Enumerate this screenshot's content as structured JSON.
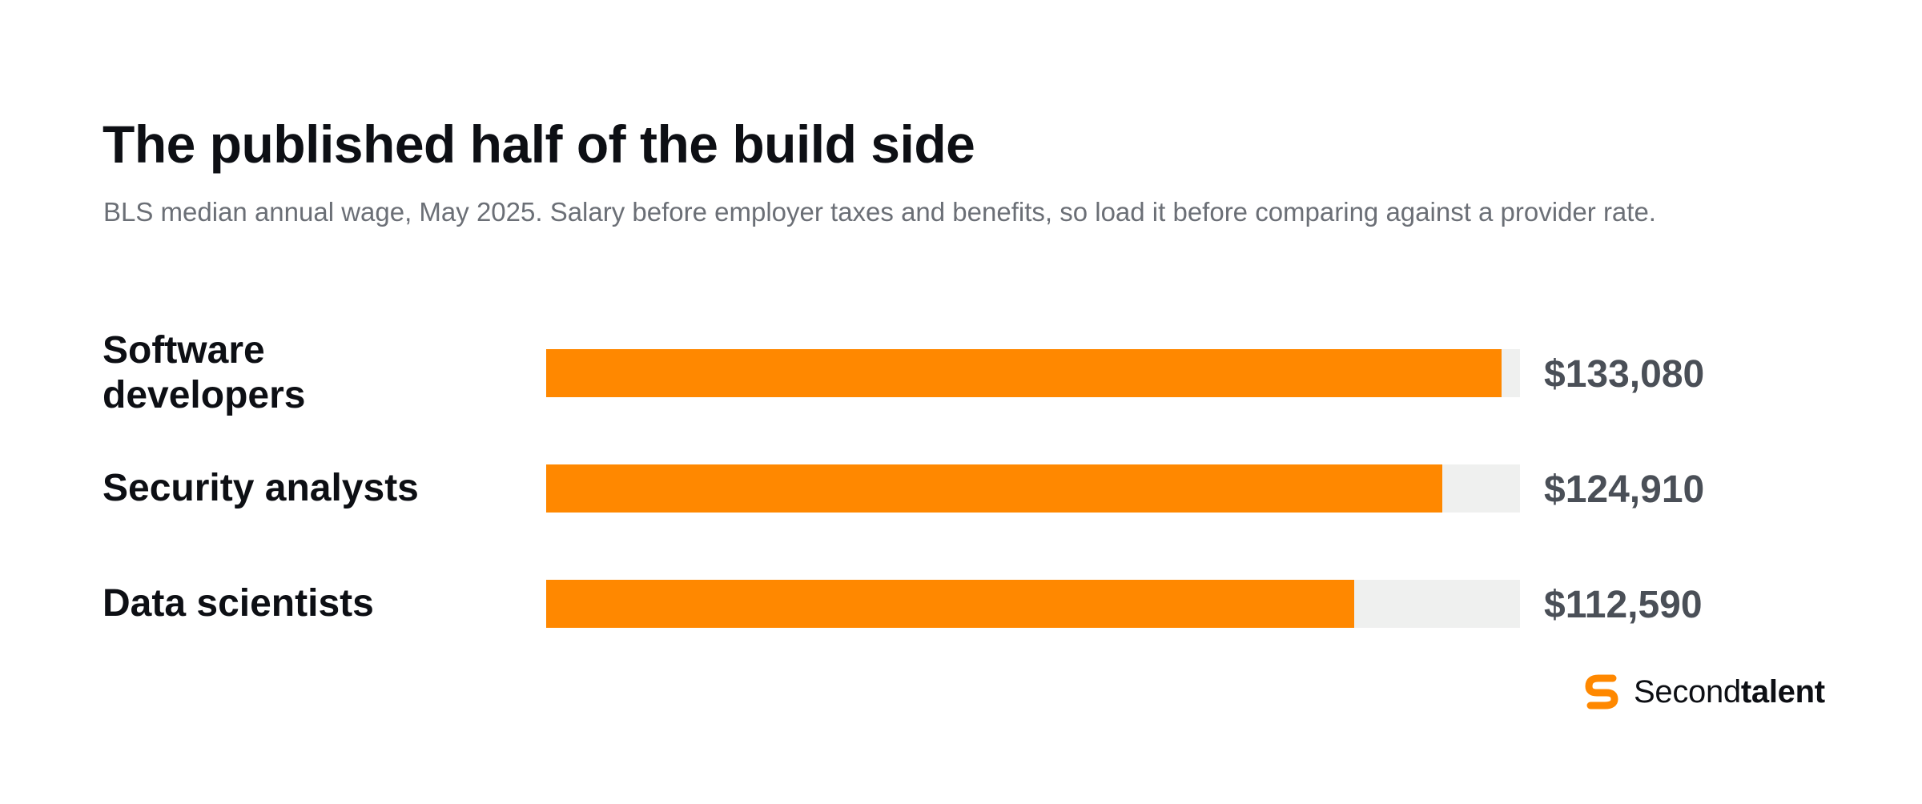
{
  "chart_data": {
    "type": "bar",
    "orientation": "horizontal",
    "title": "The published half of the build side",
    "subtitle": "BLS median annual wage, May 2025. Salary before employer taxes and benefits, so load it before comparing against a provider rate.",
    "categories": [
      "Software developers",
      "Security analysts",
      "Data scientists"
    ],
    "values": [
      133080,
      124910,
      112590
    ],
    "value_labels": [
      "$133,080",
      "$124,910",
      "$112,590"
    ],
    "xlim": [
      0,
      135700
    ],
    "grid": false,
    "legend": "none",
    "colors": {
      "bar": "#ff8800",
      "track": "#eff0ef"
    }
  },
  "brand": {
    "name_regular": "Second",
    "name_bold": "talent",
    "icon": "secondtalent-logo-icon",
    "color": "#ff8800"
  }
}
